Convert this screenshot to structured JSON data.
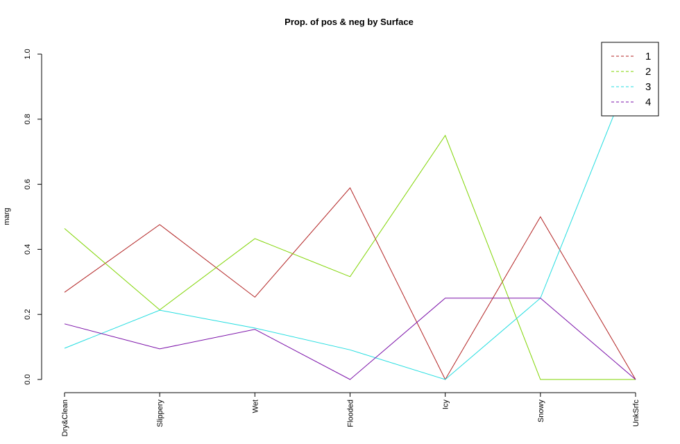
{
  "chart_data": {
    "type": "line",
    "title": "Prop. of pos & neg by Surface",
    "xlabel": "",
    "ylabel": "marg",
    "ylim": [
      0,
      1
    ],
    "yticks": [
      "0.0",
      "0.2",
      "0.4",
      "0.6",
      "0.8",
      "1.0"
    ],
    "categories": [
      "Dry&Clean",
      "Slippery",
      "Wet",
      "Flooded",
      "Icy",
      "Snowy",
      "UnkSrfc"
    ],
    "legend_position": "top-right",
    "series": [
      {
        "name": "1",
        "color": "#b22222",
        "values": [
          0.268,
          0.476,
          0.253,
          0.589,
          0.0,
          0.5,
          0.0
        ]
      },
      {
        "name": "2",
        "color": "#7fd400",
        "values": [
          0.464,
          0.214,
          0.433,
          0.316,
          0.75,
          0.0,
          0.0
        ]
      },
      {
        "name": "3",
        "color": "#22dde0",
        "values": [
          0.096,
          0.213,
          0.158,
          0.091,
          0.0,
          0.25,
          0.98
        ]
      },
      {
        "name": "4",
        "color": "#7a0fa8",
        "values": [
          0.171,
          0.094,
          0.154,
          0.0,
          0.25,
          0.25,
          0.0
        ]
      }
    ]
  }
}
